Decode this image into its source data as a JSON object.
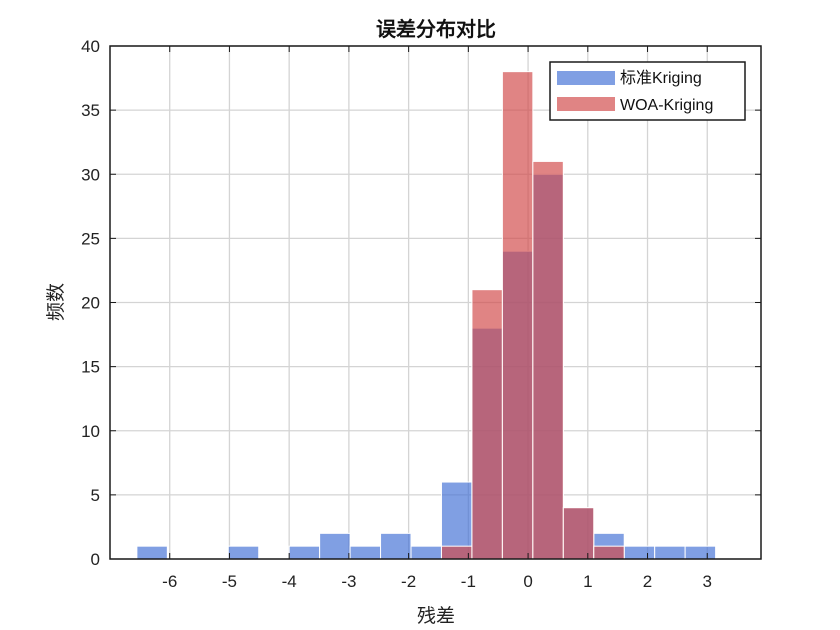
{
  "chart_data": {
    "type": "bar",
    "title": "误差分布对比",
    "xlabel": "残差",
    "ylabel": "频数",
    "xlim": [
      -7.0,
      3.9
    ],
    "ylim": [
      0,
      40
    ],
    "xticks": [
      -6,
      -5,
      -4,
      -3,
      -2,
      -1,
      0,
      1,
      2,
      3
    ],
    "yticks": [
      0,
      5,
      10,
      15,
      20,
      25,
      30,
      35,
      40
    ],
    "grid": true,
    "legend_position": "top-right",
    "colors": {
      "standard": "#4472d6",
      "woa": "#d24a4a"
    },
    "series": [
      {
        "name": "标准Kriging",
        "bin_width": 0.51,
        "bins": [
          {
            "start": -6.55,
            "value": 1
          },
          {
            "start": -6.04,
            "value": 0
          },
          {
            "start": -5.53,
            "value": 0
          },
          {
            "start": -5.02,
            "value": 1
          },
          {
            "start": -4.51,
            "value": 0
          },
          {
            "start": -4.0,
            "value": 1
          },
          {
            "start": -3.49,
            "value": 2
          },
          {
            "start": -2.98,
            "value": 1
          },
          {
            "start": -2.47,
            "value": 2
          },
          {
            "start": -1.96,
            "value": 1
          },
          {
            "start": -1.45,
            "value": 6
          },
          {
            "start": -0.94,
            "value": 18
          },
          {
            "start": -0.43,
            "value": 24
          },
          {
            "start": 0.08,
            "value": 30
          },
          {
            "start": 0.59,
            "value": 4
          },
          {
            "start": 1.1,
            "value": 2
          },
          {
            "start": 1.61,
            "value": 1
          },
          {
            "start": 2.12,
            "value": 1
          },
          {
            "start": 2.63,
            "value": 1
          }
        ]
      },
      {
        "name": "WOA-Kriging",
        "bin_width": 0.51,
        "bins": [
          {
            "start": -1.45,
            "value": 1
          },
          {
            "start": -0.94,
            "value": 21
          },
          {
            "start": -0.43,
            "value": 38
          },
          {
            "start": 0.08,
            "value": 31
          },
          {
            "start": 0.59,
            "value": 4
          },
          {
            "start": 1.1,
            "value": 1
          }
        ]
      }
    ]
  }
}
